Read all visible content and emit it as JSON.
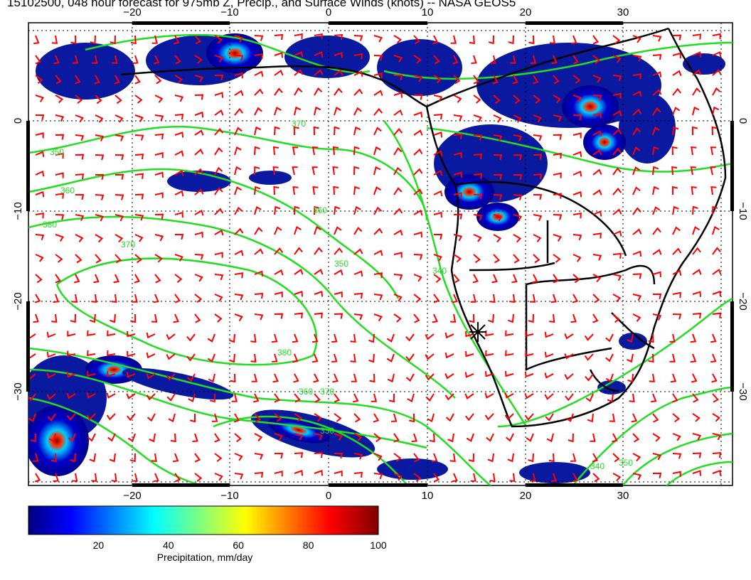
{
  "title": "15102500, 048 hour forecast for 975mb Z, Precip., and Surface Winds (knots) -- NASA GEOS5",
  "map": {
    "lon_range": [
      -30,
      40
    ],
    "lat_range": [
      -40,
      10
    ],
    "lon_ticks": [
      "−20",
      "−10",
      "0",
      "10",
      "20",
      "30"
    ],
    "lat_ticks": [
      "0",
      "−10",
      "−20",
      "−30"
    ],
    "contour_labels": [
      "350",
      "360",
      "380",
      "370",
      "370",
      "360",
      "350",
      "340",
      "330",
      "380",
      "370",
      "360",
      "340",
      "350"
    ],
    "colors": {
      "land_outline": "#000000",
      "contour": "#22dd22",
      "wind_barb": "#ff0000",
      "precip_low": "#00008b",
      "precip_high": "#8b0000"
    },
    "marker": "asterisk"
  },
  "colorbar": {
    "title": "Precipitation, mm/day",
    "ticks": [
      "20",
      "40",
      "60",
      "80",
      "100"
    ],
    "range": [
      0,
      100
    ],
    "colormap": "jet"
  }
}
